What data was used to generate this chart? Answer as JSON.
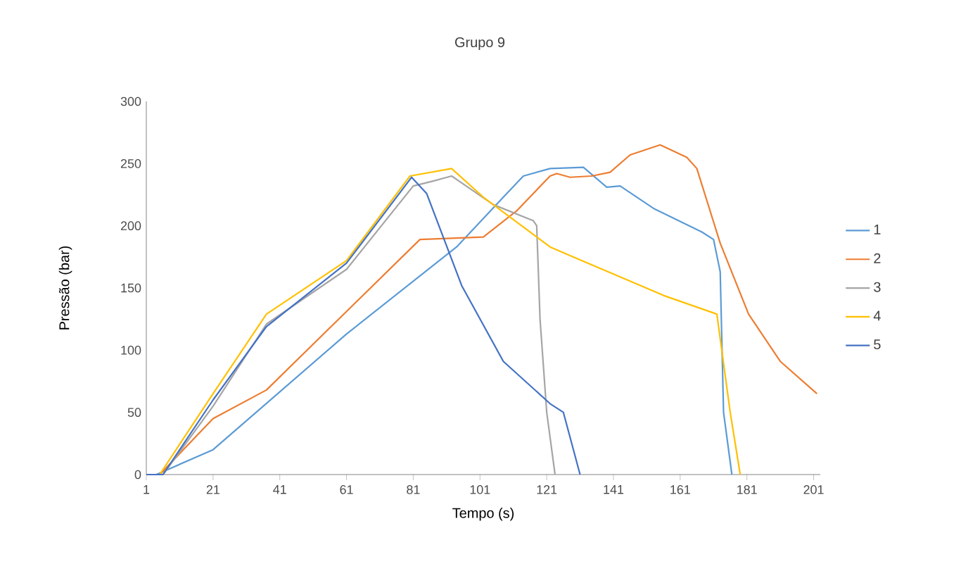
{
  "chart_data": {
    "type": "line",
    "title": "Grupo 9",
    "xlabel": "Tempo (s)",
    "ylabel": "Pressão (bar)",
    "xlim": [
      1,
      203
    ],
    "xticks": [
      1,
      21,
      41,
      61,
      81,
      101,
      121,
      141,
      161,
      181,
      201
    ],
    "ylim": [
      0,
      300
    ],
    "yticks": [
      0,
      50,
      100,
      150,
      200,
      250,
      300
    ],
    "grid": false,
    "legend": "right",
    "marker": "none",
    "line_style": "solid",
    "series": [
      {
        "name": "1",
        "color": "#5b9bd5",
        "x": [
          1,
          4,
          21,
          61,
          94,
          108,
          114,
          122,
          132,
          139,
          143,
          153,
          167.5,
          171,
          173,
          174,
          176.5
        ],
        "values": [
          0,
          0,
          20,
          113,
          183,
          223,
          240,
          246,
          247,
          231,
          232,
          214,
          195,
          189,
          163,
          50,
          0
        ]
      },
      {
        "name": "2",
        "color": "#ed7d31",
        "x": [
          1,
          5,
          21,
          37,
          83,
          102,
          112,
          122,
          124,
          128,
          134.5,
          140,
          146,
          155,
          163,
          166,
          173,
          181.5,
          191,
          202
        ],
        "values": [
          0,
          0,
          45,
          68,
          189,
          191,
          212,
          240,
          242,
          239,
          240,
          243,
          257,
          265,
          255,
          246,
          186,
          129,
          91,
          65
        ]
      },
      {
        "name": "3",
        "color": "#a5a5a5",
        "x": [
          1,
          6,
          21,
          37,
          61,
          81,
          87,
          92.5,
          105,
          117,
          118,
          119,
          121,
          123.5
        ],
        "values": [
          0,
          0,
          55,
          121,
          165,
          232,
          236,
          240,
          217,
          204,
          200,
          125,
          50,
          0
        ]
      },
      {
        "name": "4",
        "color": "#ffc000",
        "x": [
          1,
          5,
          21,
          37,
          61,
          80,
          92.5,
          102,
          122,
          128,
          156,
          172,
          176,
          179
        ],
        "values": [
          0,
          0,
          65,
          129,
          172,
          240,
          246,
          223,
          183,
          176,
          144,
          129,
          50,
          0
        ]
      },
      {
        "name": "5",
        "color": "#4472c4",
        "x": [
          1,
          6,
          21,
          37,
          61,
          80.5,
          85,
          95.5,
          108,
          122,
          126,
          131
        ],
        "values": [
          0,
          0,
          60,
          119,
          170,
          239,
          226,
          152,
          91,
          57,
          50,
          0
        ]
      }
    ]
  }
}
